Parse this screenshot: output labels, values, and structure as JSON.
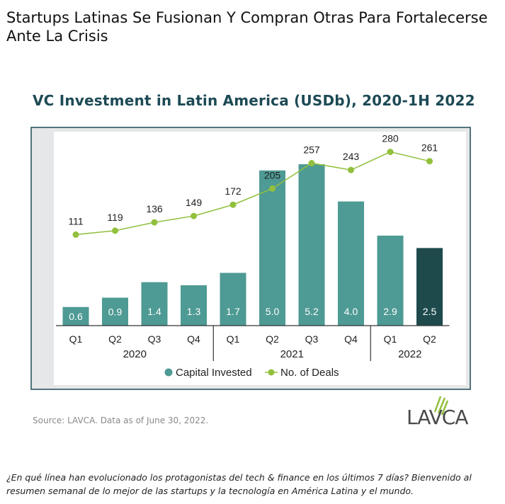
{
  "headline": "Startups Latinas Se Fusionan Y Compran Otras Para Fortalecerse Ante La Crisis",
  "source": "Source: LAVCA. Data as of June 30, 2022.",
  "logo_text": "LAVCA",
  "footer": "¿En qué línea han evolucionado los protagonistas del tech & finance en los últimos 7 días? Bienvenido al resumen semanal de lo mejor de las startups y la tecnología en América Latina y el mundo.",
  "colors": {
    "bar": "#4e9a94",
    "bar_highlight": "#1e4a4c",
    "line": "#92c03d",
    "plot_bg": "#e6e7e8",
    "frame": "#1d4a55"
  },
  "chart_data": {
    "type": "bar",
    "title": "VC Investment in Latin America (USDb), 2020-1H 2022",
    "categories": [
      "Q1",
      "Q2",
      "Q3",
      "Q4",
      "Q1",
      "Q2",
      "Q3",
      "Q4",
      "Q1",
      "Q2"
    ],
    "year_groups": [
      {
        "label": "2020",
        "from": 0,
        "to": 3
      },
      {
        "label": "2021",
        "from": 4,
        "to": 7
      },
      {
        "label": "2022",
        "from": 8,
        "to": 9
      }
    ],
    "series": [
      {
        "name": "Capital Invested",
        "kind": "bar",
        "values": [
          0.6,
          0.9,
          1.4,
          1.3,
          1.7,
          5.0,
          5.2,
          4.0,
          2.9,
          2.5
        ],
        "labels": [
          "0.6",
          "0.9",
          "1.4",
          "1.3",
          "1.7",
          "5.0",
          "5.2",
          "4.0",
          "2.9",
          "2.5"
        ],
        "highlight_index": 9
      },
      {
        "name": "No. of Deals",
        "kind": "line",
        "values": [
          111,
          119,
          136,
          149,
          172,
          205,
          257,
          243,
          280,
          261
        ]
      }
    ],
    "bar_ylim": [
      0,
      6.0
    ],
    "line_ylim": [
      -75,
      330
    ],
    "legend_position": "bottom-center",
    "grid": false
  }
}
